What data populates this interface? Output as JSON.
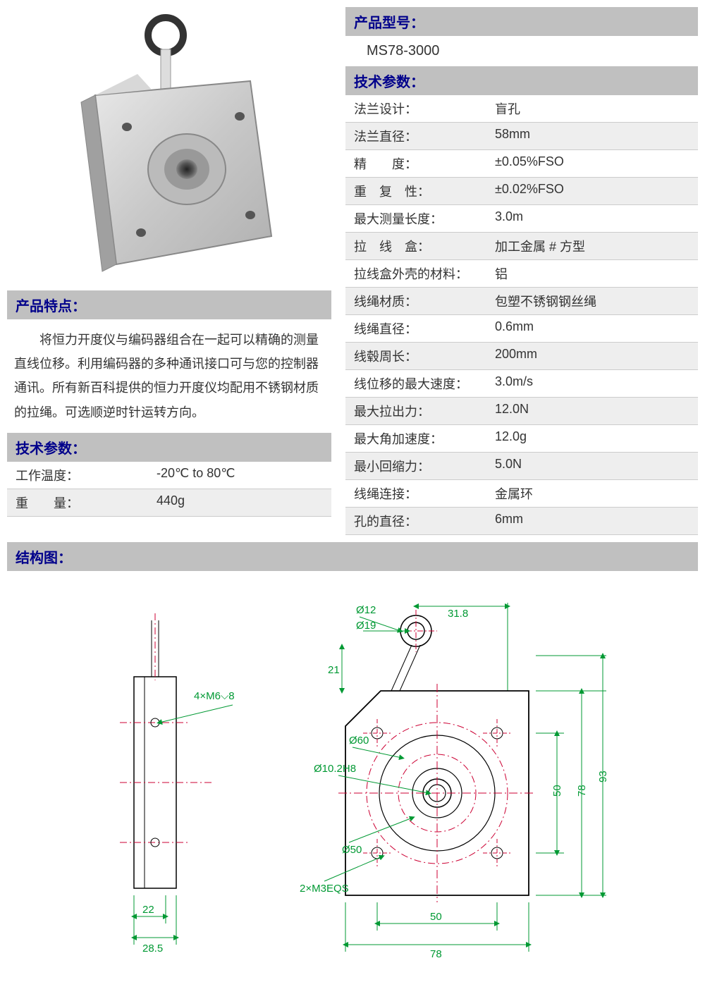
{
  "headers": {
    "model": "产品型号：",
    "specs": "技术参数：",
    "features": "产品特点：",
    "left_specs": "技术参数：",
    "structure": "结构图："
  },
  "model_value": "MS78-3000",
  "right_specs": [
    {
      "label": "法兰设计：",
      "value": "盲孔",
      "alt": false
    },
    {
      "label": "法兰直径：",
      "value": "58mm",
      "alt": true
    },
    {
      "label": "精　　度：",
      "value": "±0.05%FSO",
      "alt": false
    },
    {
      "label": "重　复　性：",
      "value": "±0.02%FSO",
      "alt": true
    },
    {
      "label": "最大测量长度：",
      "value": "3.0m",
      "alt": false
    },
    {
      "label": "拉　线　盒：",
      "value": "加工金属 # 方型",
      "alt": true
    },
    {
      "label": "拉线盒外壳的材料：",
      "value": "铝",
      "alt": false
    },
    {
      "label": "线绳材质：",
      "value": "包塑不锈钢钢丝绳",
      "alt": true
    },
    {
      "label": "线绳直径：",
      "value": "0.6mm",
      "alt": false
    },
    {
      "label": "线毂周长：",
      "value": "200mm",
      "alt": true
    },
    {
      "label": "线位移的最大速度：",
      "value": "3.0m/s",
      "alt": false
    },
    {
      "label": "最大拉出力：",
      "value": "12.0N",
      "alt": true
    },
    {
      "label": "最大角加速度：",
      "value": "12.0g",
      "alt": false
    },
    {
      "label": "最小回缩力：",
      "value": "5.0N",
      "alt": true
    },
    {
      "label": "线绳连接：",
      "value": "金属环",
      "alt": false
    },
    {
      "label": "孔的直径：",
      "value": "6mm",
      "alt": true
    }
  ],
  "features_text": "将恒力开度仪与编码器组合在一起可以精确的测量直线位移。利用编码器的多种通讯接口可与您的控制器通讯。所有新百科提供的恒力开度仪均配用不锈钢材质的拉绳。可选顺逆时针运转方向。",
  "left_specs": [
    {
      "label": "工作温度：",
      "value": "-20℃ to 80℃",
      "alt": false
    },
    {
      "label": "重　　量：",
      "value": "440g",
      "alt": true
    }
  ],
  "dimensions": {
    "side_mount": "4×M6⌵8",
    "side_w1": "22",
    "side_w2": "28.5",
    "ring_od": "Ø12",
    "ring_id": "Ø19",
    "ring_offset": "31.8",
    "ring_height": "21",
    "bolt_circle": "Ø60",
    "bore": "Ø10.2H8",
    "step": "Ø50",
    "tap": "2×M3EQS",
    "body_w_inner": "50",
    "body_w": "78",
    "body_h_inner": "50",
    "body_h_mid": "78",
    "body_h": "93"
  },
  "colors": {
    "header_bg": "#c0c0c0",
    "header_fg": "#00008b",
    "alt_row": "#eeeeee",
    "dim_green": "#009933",
    "centerline_red": "#cc0033"
  }
}
